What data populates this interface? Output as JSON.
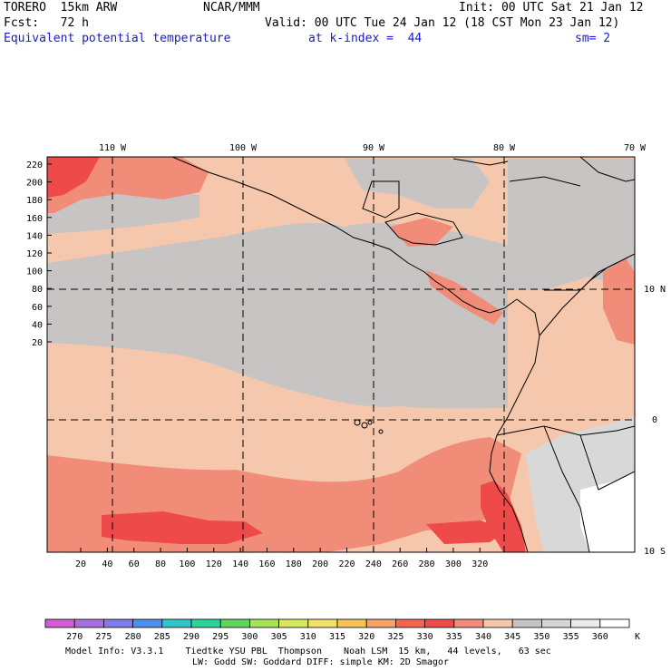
{
  "header": {
    "model": "TORERO  15km ARW",
    "center": "NCAR/MMM",
    "init": "Init: 00 UTC Sat 21 Jan 12",
    "fcst": "Fcst:   72 h",
    "valid": "Valid: 00 UTC Tue 24 Jan 12 (18 CST Mon 23 Jan 12)",
    "field": "Equivalent potential temperature",
    "level": "at k-index =  44",
    "smooth": "sm= 2"
  },
  "map": {
    "lon_labels": [
      "110 W",
      "100 W",
      "90 W",
      "80 W",
      "70 W"
    ],
    "lat_labels": [
      "10 N",
      "0",
      "10 S"
    ],
    "y_ticks": [
      "220",
      "200",
      "180",
      "160",
      "140",
      "120",
      "100",
      "80",
      "60",
      "40",
      "20"
    ],
    "x_ticks": [
      "20",
      "40",
      "60",
      "80",
      "100",
      "120",
      "140",
      "160",
      "180",
      "200",
      "220",
      "240",
      "260",
      "280",
      "300",
      "320"
    ]
  },
  "colorbar": {
    "labels": [
      "270",
      "275",
      "280",
      "285",
      "290",
      "295",
      "300",
      "305",
      "310",
      "315",
      "320",
      "325",
      "330",
      "335",
      "340",
      "345",
      "350",
      "355",
      "360"
    ],
    "unit": "K",
    "colors": [
      "#d15fcf",
      "#a86fd8",
      "#7f7be8",
      "#4f8fec",
      "#2ec6c6",
      "#2ed39c",
      "#5fd45f",
      "#a6e35a",
      "#d7e85a",
      "#f1e06a",
      "#f6c35a",
      "#f4a36a",
      "#f26651",
      "#ee4a4a",
      "#f18c78",
      "#f5c8ae",
      "#c8c4c4",
      "#d6d6d6",
      "#ebebeb",
      "#ffffff"
    ]
  },
  "footer": {
    "line1": "Model Info: V3.3.1    Tiedtke YSU PBL  Thompson    Noah LSM  15 km,   44 levels,   63 sec",
    "line2": "LW: Godd SW: Goddard DIFF: simple KM: 2D Smagor"
  },
  "colors": {
    "ocean": "#f5c8ae",
    "gray": "#c8c4c4",
    "salmon": "#f18c78",
    "red": "#ee4a4a",
    "light": "#d8d8d8",
    "white": "#ffffff"
  }
}
